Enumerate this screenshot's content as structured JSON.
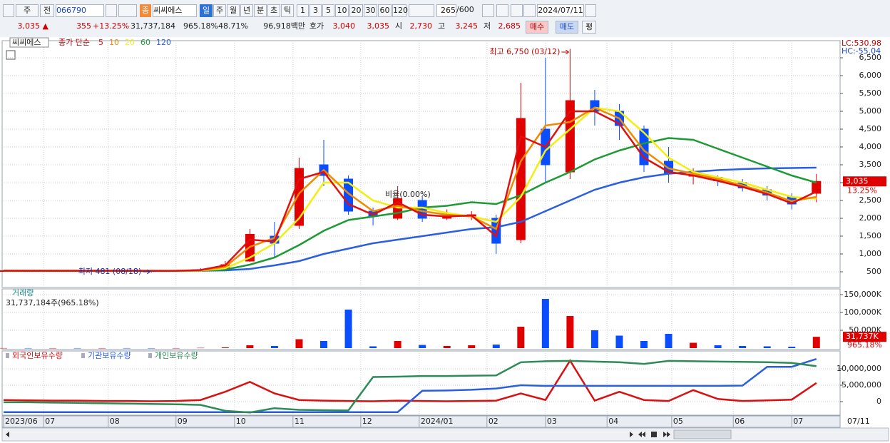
{
  "toolbar": {
    "market_select": "주",
    "view_select": "전",
    "code": "066790",
    "market_badge": "종",
    "stock_name": "씨씨에스",
    "period_buttons": [
      "일",
      "주",
      "월",
      "년",
      "분",
      "초",
      "틱"
    ],
    "interval_buttons": [
      "1",
      "3",
      "5",
      "10",
      "20",
      "30",
      "60",
      "120"
    ],
    "count": "265",
    "count_max": "/600",
    "date": "2024/07/11"
  },
  "quote_bar": {
    "price": "3,035 ▲",
    "change": "355",
    "change_rate": "+13.25%",
    "volume": "31,737,184",
    "volume_rate": "965.18%",
    "turnover": "48.71%",
    "amount": "96,918백만",
    "ask_label": "호가",
    "ask": "3,040",
    "bid": "3,035",
    "open_label": "시",
    "open": "2,730",
    "high_label": "고",
    "high": "3,245",
    "low_label": "저",
    "low": "2,685",
    "buy_button": "매수",
    "sell_button": "매도",
    "avg_button": "평"
  },
  "chart_data": [
    {
      "type": "candlestick",
      "legend_name": "씨씨에스",
      "ma_label": "종가 단순",
      "x": [
        0,
        8,
        16,
        24,
        32,
        40,
        48,
        56,
        64,
        72,
        80,
        88,
        96,
        104,
        112,
        120,
        128,
        136,
        144,
        152,
        160,
        168,
        176,
        184,
        192,
        200,
        208,
        216,
        224,
        232,
        240,
        248,
        256,
        264
      ],
      "xlim": [
        0,
        271
      ],
      "xticks": [
        {
          "value": 0,
          "label": "2023/06"
        },
        {
          "value": 13,
          "label": "07"
        },
        {
          "value": 34,
          "label": "08"
        },
        {
          "value": 56,
          "label": "09"
        },
        {
          "value": 75,
          "label": "10"
        },
        {
          "value": 94,
          "label": "11"
        },
        {
          "value": 116,
          "label": "12"
        },
        {
          "value": 135,
          "label": "2024/01"
        },
        {
          "value": 157,
          "label": "02"
        },
        {
          "value": 176,
          "label": "03"
        },
        {
          "value": 196,
          "label": "04"
        },
        {
          "value": 217,
          "label": "05"
        },
        {
          "value": 237,
          "label": "06"
        },
        {
          "value": 256,
          "label": "07"
        }
      ],
      "x_end_label": "07/11",
      "open": [
        530,
        530,
        528,
        530,
        525,
        530,
        528,
        520,
        530,
        580,
        800,
        1500,
        1800,
        3500,
        3100,
        2200,
        2000,
        2500,
        2000,
        2050,
        2000,
        1400,
        4500,
        3300,
        5300,
        5000,
        4500,
        3600,
        3200,
        3150,
        3000,
        2800,
        2600,
        2700
      ],
      "high": [
        545,
        540,
        540,
        535,
        540,
        540,
        535,
        545,
        600,
        800,
        1700,
        1900,
        3700,
        4200,
        3200,
        2300,
        2900,
        2600,
        2250,
        2200,
        2100,
        5800,
        6500,
        6750,
        5600,
        5200,
        4600,
        4000,
        3400,
        3200,
        3100,
        2900,
        2700,
        3245
      ],
      "low": [
        515,
        515,
        515,
        510,
        515,
        515,
        481,
        510,
        520,
        570,
        780,
        900,
        1700,
        2900,
        2100,
        1800,
        1950,
        1900,
        1950,
        1950,
        1000,
        1300,
        3000,
        3100,
        4600,
        4200,
        3300,
        3000,
        2950,
        2900,
        2750,
        2500,
        2250,
        2450
      ],
      "close": [
        530,
        528,
        530,
        525,
        530,
        528,
        520,
        530,
        560,
        700,
        1550,
        1300,
        3400,
        3200,
        2200,
        2050,
        2550,
        2000,
        2050,
        2100,
        1300,
        4800,
        3500,
        5300,
        5000,
        4600,
        3500,
        3250,
        3200,
        3050,
        2850,
        2650,
        2400,
        3035
      ],
      "up_color": "#e00000",
      "down_color": "#0a4dff",
      "series": [
        {
          "name": "5",
          "color": "#e01010",
          "values": [
            530,
            529,
            529,
            528,
            528,
            529,
            525,
            527,
            550,
            680,
            1400,
            1350,
            3100,
            3300,
            2400,
            2100,
            2450,
            2100,
            2050,
            2080,
            1500,
            4300,
            4000,
            5000,
            5000,
            4650,
            3700,
            3300,
            3200,
            3050,
            2880,
            2680,
            2420,
            2750
          ]
        },
        {
          "name": "10",
          "color": "#f08a00",
          "values": [
            530,
            529,
            529,
            528,
            528,
            528,
            526,
            527,
            540,
            640,
            1200,
            1450,
            2700,
            3350,
            2700,
            2200,
            2350,
            2200,
            2100,
            2050,
            1700,
            3600,
            4600,
            4700,
            5100,
            4800,
            3900,
            3400,
            3250,
            3100,
            2920,
            2720,
            2480,
            2600
          ]
        },
        {
          "name": "20",
          "color": "#f2ee10",
          "values": [
            530,
            529,
            529,
            529,
            528,
            528,
            527,
            527,
            535,
            600,
            900,
            1300,
            2000,
            3000,
            3000,
            2500,
            2300,
            2300,
            2150,
            2050,
            1900,
            2600,
            3900,
            4500,
            5100,
            5000,
            4400,
            3700,
            3300,
            3150,
            3000,
            2800,
            2600,
            2550
          ]
        },
        {
          "name": "60",
          "color": "#1e9a34",
          "values": [
            530,
            530,
            530,
            530,
            529,
            529,
            528,
            528,
            530,
            560,
            700,
            900,
            1250,
            1650,
            1950,
            2050,
            2150,
            2300,
            2350,
            2450,
            2400,
            2650,
            3000,
            3300,
            3650,
            3900,
            4100,
            4250,
            4200,
            3950,
            3700,
            3450,
            3200,
            3000
          ]
        },
        {
          "name": "120",
          "color": "#2a5fe0",
          "values": [
            530,
            530,
            530,
            530,
            530,
            530,
            530,
            529,
            530,
            540,
            580,
            680,
            800,
            1000,
            1150,
            1300,
            1400,
            1500,
            1600,
            1700,
            1750,
            1900,
            2200,
            2500,
            2800,
            3000,
            3150,
            3250,
            3300,
            3350,
            3380,
            3400,
            3410,
            3420
          ]
        }
      ],
      "ylim": [
        60,
        6980
      ],
      "yticks": [
        500,
        {
          "value": 1000,
          "label": "1,000"
        },
        {
          "value": 1500,
          "label": "1,500"
        },
        {
          "value": 2000,
          "label": "2,000"
        },
        {
          "value": 2500,
          "label": "2,500"
        },
        {
          "value": 3000,
          "label": "3,000"
        },
        {
          "value": 3500,
          "label": "3,500"
        },
        {
          "value": 4000,
          "label": "4,000"
        },
        {
          "value": 4500,
          "label": "4,500"
        },
        {
          "value": 5000,
          "label": "5,000"
        },
        {
          "value": 5500,
          "label": "5,500"
        },
        {
          "value": 6000,
          "label": "6,000"
        },
        {
          "value": 6500,
          "label": "6,500"
        }
      ],
      "grid": true,
      "annotations": [
        "최고 6,750 (03/12)",
        "최저 481 (08/18)",
        "비율(0.00%)"
      ],
      "lc_label": "LC:530.98",
      "hc_label": "HC:-55.04",
      "last_label": "3,035",
      "change_label": "13.25%"
    },
    {
      "type": "bar",
      "legend_name": "거래량",
      "subtitle": "31,737,184주(965.18%)",
      "x": [
        0,
        8,
        16,
        24,
        32,
        40,
        48,
        56,
        64,
        72,
        80,
        88,
        96,
        104,
        112,
        120,
        128,
        136,
        144,
        152,
        160,
        168,
        176,
        184,
        192,
        200,
        208,
        216,
        224,
        232,
        240,
        248,
        256,
        264
      ],
      "xlim": [
        0,
        271
      ],
      "values": [
        200,
        150,
        150,
        120,
        130,
        150,
        100,
        150,
        800,
        2000,
        8000,
        6000,
        25000,
        20000,
        108000,
        5000,
        20000,
        9000,
        6000,
        8000,
        10000,
        60000,
        138000,
        90000,
        50000,
        35000,
        20000,
        40000,
        15000,
        8000,
        6000,
        5000,
        4000,
        31737
      ],
      "ylim": [
        -4000,
        166000
      ],
      "yticks": [
        {
          "value": 50000,
          "label": "50,000K"
        },
        {
          "value": 100000,
          "label": "100,000K"
        },
        {
          "value": 150000,
          "label": "150,000K"
        }
      ],
      "grid": true,
      "last_label": "31,737K",
      "rate_label": "965.18%"
    },
    {
      "type": "line",
      "x": [
        0,
        8,
        16,
        24,
        32,
        40,
        48,
        56,
        64,
        72,
        80,
        88,
        96,
        104,
        112,
        120,
        128,
        136,
        144,
        152,
        160,
        168,
        176,
        184,
        192,
        200,
        208,
        216,
        224,
        232,
        240,
        248,
        256,
        264
      ],
      "xlim": [
        0,
        271
      ],
      "series": [
        {
          "name": "외국인보유수량",
          "color": "#d81010",
          "values": [
            500000,
            400000,
            300000,
            300000,
            200000,
            200000,
            100000,
            200000,
            500000,
            3000000,
            6000000,
            2500000,
            500000,
            300000,
            200000,
            100000,
            300000,
            200000,
            100000,
            200000,
            300000,
            2500000,
            500000,
            12500000,
            300000,
            3000000,
            500000,
            200000,
            3500000,
            800000,
            200000,
            400000,
            600000,
            5700000
          ]
        },
        {
          "name": "기관보유수량",
          "color": "#2a5fe0",
          "values": [
            -3200000,
            -3200000,
            -3200000,
            -3200000,
            -3200000,
            -3200000,
            -3200000,
            -3200000,
            -3200000,
            -3200000,
            -3200000,
            -3200000,
            -3200000,
            -3200000,
            -3200000,
            -3200000,
            -3200000,
            3300000,
            3400000,
            3600000,
            4000000,
            5000000,
            4800000,
            4800000,
            4800000,
            4800000,
            4800000,
            4800000,
            4800000,
            4800000,
            4900000,
            10600000,
            10600000,
            13000000
          ]
        },
        {
          "name": "개인보유수량",
          "color": "#2e8b57",
          "values": [
            -200000,
            -200000,
            -300000,
            -400000,
            -500000,
            -600000,
            -700000,
            -800000,
            -1000000,
            -2800000,
            -3300000,
            -2000000,
            -2500000,
            -2600000,
            -2700000,
            7500000,
            7600000,
            7800000,
            7800000,
            7900000,
            8000000,
            12000000,
            12300000,
            12400000,
            12200000,
            12000000,
            11500000,
            12400000,
            12300000,
            12200000,
            12100000,
            12000000,
            11800000,
            10800000
          ]
        }
      ],
      "ylim": [
        -4130000,
        15430000
      ],
      "yticks": [
        0,
        {
          "value": 5000000,
          "label": "5,000,000"
        },
        {
          "value": 10000000,
          "label": "10,000,000"
        }
      ],
      "grid": true
    }
  ]
}
